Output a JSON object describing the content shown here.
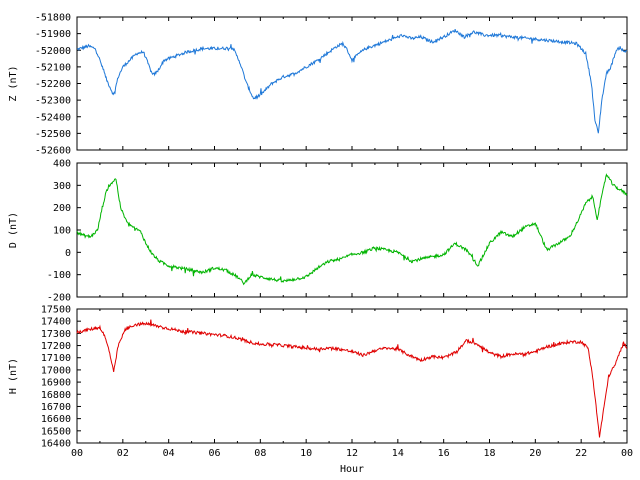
{
  "chart_data": [
    {
      "type": "line",
      "ylabel": "Z (nT)",
      "ylim": [
        -52600,
        -51800
      ],
      "yticks": [
        -51800,
        -51900,
        -52000,
        -52100,
        -52200,
        -52300,
        -52400,
        -52500,
        -52600
      ],
      "xlim": [
        0,
        24
      ],
      "series": [
        {
          "color": "#1f78d8",
          "points": [
            [
              0,
              -51995
            ],
            [
              0.5,
              -51975
            ],
            [
              0.8,
              -51990
            ],
            [
              1.0,
              -52060
            ],
            [
              1.3,
              -52180
            ],
            [
              1.6,
              -52270
            ],
            [
              1.8,
              -52160
            ],
            [
              2.0,
              -52100
            ],
            [
              2.3,
              -52060
            ],
            [
              2.6,
              -52020
            ],
            [
              2.9,
              -52010
            ],
            [
              3.1,
              -52080
            ],
            [
              3.3,
              -52150
            ],
            [
              3.5,
              -52130
            ],
            [
              3.8,
              -52060
            ],
            [
              4.2,
              -52040
            ],
            [
              4.8,
              -52010
            ],
            [
              5.5,
              -51990
            ],
            [
              6.2,
              -51990
            ],
            [
              6.8,
              -51985
            ],
            [
              7.1,
              -52070
            ],
            [
              7.4,
              -52200
            ],
            [
              7.7,
              -52290
            ],
            [
              8.0,
              -52270
            ],
            [
              8.5,
              -52200
            ],
            [
              9.0,
              -52160
            ],
            [
              9.5,
              -52140
            ],
            [
              10.0,
              -52100
            ],
            [
              10.5,
              -52060
            ],
            [
              10.9,
              -52020
            ],
            [
              11.3,
              -51980
            ],
            [
              11.6,
              -51960
            ],
            [
              11.8,
              -52000
            ],
            [
              12.0,
              -52060
            ],
            [
              12.3,
              -52020
            ],
            [
              12.6,
              -51990
            ],
            [
              13.0,
              -51970
            ],
            [
              13.4,
              -51950
            ],
            [
              13.8,
              -51930
            ],
            [
              14.2,
              -51910
            ],
            [
              14.6,
              -51930
            ],
            [
              15.0,
              -51920
            ],
            [
              15.5,
              -51950
            ],
            [
              16.0,
              -51920
            ],
            [
              16.5,
              -51880
            ],
            [
              16.9,
              -51920
            ],
            [
              17.3,
              -51890
            ],
            [
              17.8,
              -51910
            ],
            [
              18.3,
              -51910
            ],
            [
              19.0,
              -51920
            ],
            [
              19.8,
              -51930
            ],
            [
              20.5,
              -51940
            ],
            [
              21.2,
              -51950
            ],
            [
              21.8,
              -51960
            ],
            [
              22.2,
              -52020
            ],
            [
              22.45,
              -52200
            ],
            [
              22.6,
              -52420
            ],
            [
              22.75,
              -52500
            ],
            [
              22.9,
              -52300
            ],
            [
              23.1,
              -52140
            ],
            [
              23.3,
              -52100
            ],
            [
              23.5,
              -52010
            ],
            [
              23.7,
              -51980
            ],
            [
              23.85,
              -52010
            ],
            [
              24,
              -52000
            ]
          ]
        }
      ]
    },
    {
      "type": "line",
      "ylabel": "D (nT)",
      "ylim": [
        -200,
        400
      ],
      "yticks": [
        400,
        300,
        200,
        100,
        0,
        -100,
        -200
      ],
      "xlim": [
        0,
        24
      ],
      "series": [
        {
          "color": "#00b400",
          "points": [
            [
              0,
              90
            ],
            [
              0.3,
              75
            ],
            [
              0.6,
              70
            ],
            [
              0.9,
              100
            ],
            [
              1.1,
              200
            ],
            [
              1.3,
              280
            ],
            [
              1.5,
              310
            ],
            [
              1.7,
              330
            ],
            [
              1.9,
              200
            ],
            [
              2.2,
              130
            ],
            [
              2.5,
              110
            ],
            [
              2.8,
              90
            ],
            [
              3.0,
              40
            ],
            [
              3.3,
              -10
            ],
            [
              3.6,
              -40
            ],
            [
              4.0,
              -60
            ],
            [
              4.5,
              -70
            ],
            [
              5.0,
              -80
            ],
            [
              5.5,
              -90
            ],
            [
              6.0,
              -70
            ],
            [
              6.5,
              -80
            ],
            [
              7.0,
              -110
            ],
            [
              7.3,
              -140
            ],
            [
              7.6,
              -100
            ],
            [
              8.0,
              -110
            ],
            [
              8.5,
              -120
            ],
            [
              9.0,
              -130
            ],
            [
              9.5,
              -120
            ],
            [
              10.0,
              -110
            ],
            [
              10.5,
              -70
            ],
            [
              11.0,
              -40
            ],
            [
              11.5,
              -30
            ],
            [
              12.0,
              -10
            ],
            [
              12.5,
              0
            ],
            [
              13.0,
              20
            ],
            [
              13.5,
              10
            ],
            [
              14.0,
              0
            ],
            [
              14.3,
              -20
            ],
            [
              14.6,
              -40
            ],
            [
              15.0,
              -30
            ],
            [
              15.5,
              -20
            ],
            [
              16.0,
              -10
            ],
            [
              16.5,
              40
            ],
            [
              17.0,
              10
            ],
            [
              17.5,
              -60
            ],
            [
              18.0,
              40
            ],
            [
              18.5,
              90
            ],
            [
              19.0,
              70
            ],
            [
              19.5,
              110
            ],
            [
              20.0,
              130
            ],
            [
              20.5,
              10
            ],
            [
              21.0,
              40
            ],
            [
              21.5,
              70
            ],
            [
              21.9,
              150
            ],
            [
              22.2,
              220
            ],
            [
              22.5,
              250
            ],
            [
              22.7,
              150
            ],
            [
              22.9,
              250
            ],
            [
              23.1,
              350
            ],
            [
              23.4,
              300
            ],
            [
              23.7,
              280
            ],
            [
              24,
              260
            ]
          ]
        }
      ]
    },
    {
      "type": "line",
      "ylabel": "H (nT)",
      "xlabel": "Hour",
      "ylim": [
        16400,
        17500
      ],
      "yticks": [
        17500,
        17400,
        17300,
        17200,
        17100,
        17000,
        16900,
        16800,
        16700,
        16600,
        16500,
        16400
      ],
      "xlim": [
        0,
        24
      ],
      "xtick_labels": [
        "00",
        "02",
        "04",
        "06",
        "08",
        "10",
        "12",
        "14",
        "16",
        "18",
        "20",
        "22",
        "00"
      ],
      "series": [
        {
          "color": "#e00000",
          "points": [
            [
              0,
              17310
            ],
            [
              0.5,
              17330
            ],
            [
              1.0,
              17350
            ],
            [
              1.2,
              17280
            ],
            [
              1.4,
              17160
            ],
            [
              1.6,
              16980
            ],
            [
              1.8,
              17200
            ],
            [
              2.1,
              17330
            ],
            [
              2.5,
              17370
            ],
            [
              3.0,
              17380
            ],
            [
              3.5,
              17360
            ],
            [
              4.0,
              17340
            ],
            [
              4.5,
              17320
            ],
            [
              5.0,
              17310
            ],
            [
              5.5,
              17300
            ],
            [
              6.0,
              17290
            ],
            [
              6.5,
              17280
            ],
            [
              7.0,
              17260
            ],
            [
              7.5,
              17230
            ],
            [
              8.0,
              17210
            ],
            [
              8.5,
              17210
            ],
            [
              9.0,
              17200
            ],
            [
              9.5,
              17190
            ],
            [
              10.0,
              17180
            ],
            [
              10.5,
              17170
            ],
            [
              11.0,
              17180
            ],
            [
              11.5,
              17170
            ],
            [
              12.0,
              17150
            ],
            [
              12.5,
              17120
            ],
            [
              13.0,
              17160
            ],
            [
              13.5,
              17180
            ],
            [
              14.0,
              17170
            ],
            [
              14.5,
              17120
            ],
            [
              15.0,
              17080
            ],
            [
              15.5,
              17110
            ],
            [
              16.0,
              17100
            ],
            [
              16.5,
              17140
            ],
            [
              17.0,
              17240
            ],
            [
              17.5,
              17210
            ],
            [
              18.0,
              17140
            ],
            [
              18.5,
              17110
            ],
            [
              19.0,
              17130
            ],
            [
              19.5,
              17130
            ],
            [
              20.0,
              17150
            ],
            [
              20.5,
              17190
            ],
            [
              21.0,
              17210
            ],
            [
              21.5,
              17230
            ],
            [
              22.0,
              17230
            ],
            [
              22.3,
              17180
            ],
            [
              22.5,
              16950
            ],
            [
              22.65,
              16700
            ],
            [
              22.8,
              16450
            ],
            [
              23.0,
              16700
            ],
            [
              23.2,
              16950
            ],
            [
              23.5,
              17050
            ],
            [
              23.7,
              17150
            ],
            [
              23.85,
              17220
            ],
            [
              24,
              17180
            ]
          ]
        }
      ]
    }
  ]
}
